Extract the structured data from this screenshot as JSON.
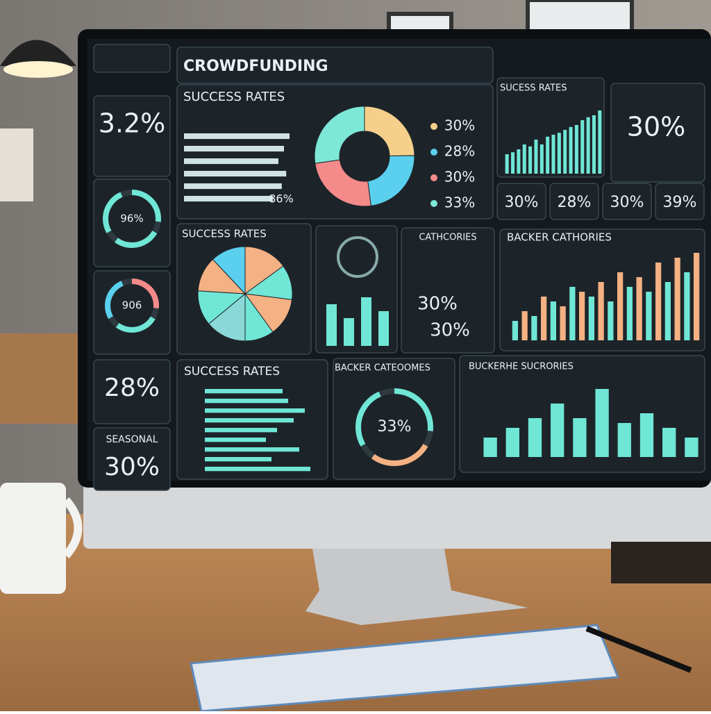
{
  "header": {
    "title": "CROWDFUNDING"
  },
  "left_cards": {
    "stat_1": "3.2%",
    "ring_1": "96%",
    "ring_2": "906",
    "stat_2": "28%",
    "seasonal_label": "SEASONAL",
    "seasonal_value": "30%"
  },
  "success_panel": {
    "title": "SUCCESS RATES",
    "bar_label": "86%",
    "bars": [
      95,
      90,
      85,
      92,
      88,
      80
    ],
    "donut": {
      "values": [
        30,
        28,
        30,
        33
      ],
      "value_labels": [
        "30%",
        "28%",
        "30%",
        "33%"
      ],
      "colors": [
        "#f6d08a",
        "#5ad0ee",
        "#f48a8a",
        "#7ee8d8"
      ]
    }
  },
  "trend_panel": {
    "title": "SUCESS RATES",
    "bars": [
      20,
      22,
      25,
      30,
      28,
      35,
      30,
      38,
      40,
      42,
      45,
      48,
      50,
      55,
      58,
      60,
      65
    ]
  },
  "big_stat": "30%",
  "mini_stats": [
    "30%",
    "28%",
    "30%",
    "39%"
  ],
  "pie_panel": {
    "title": "SUCCESS RATES",
    "values": [
      15,
      12,
      13,
      10,
      14,
      12,
      12,
      12
    ]
  },
  "icon_panel": {
    "bars": [
      60,
      40,
      70,
      50
    ]
  },
  "categories_panel": {
    "title": "CATHCORIES",
    "value_1": "30%",
    "value_2": "30%"
  },
  "backer_panel": {
    "title": "BACKER CATHORIES",
    "bars": [
      20,
      30,
      25,
      45,
      40,
      35,
      55,
      50,
      45,
      60,
      40,
      70,
      55,
      65,
      50,
      80,
      60,
      85,
      70,
      90
    ]
  },
  "bottom_success": {
    "title": "SUCCESS RATES",
    "bars": [
      70,
      75,
      90,
      80,
      65,
      55,
      85,
      60,
      95
    ]
  },
  "ring_panel": {
    "title": "BACKER CATEOOMES",
    "value": "33%"
  },
  "bottom_bars": {
    "title": "BUCKERHE SUCRORIES",
    "bars": [
      20,
      30,
      40,
      55,
      40,
      70,
      35,
      45,
      30,
      20
    ]
  }
}
